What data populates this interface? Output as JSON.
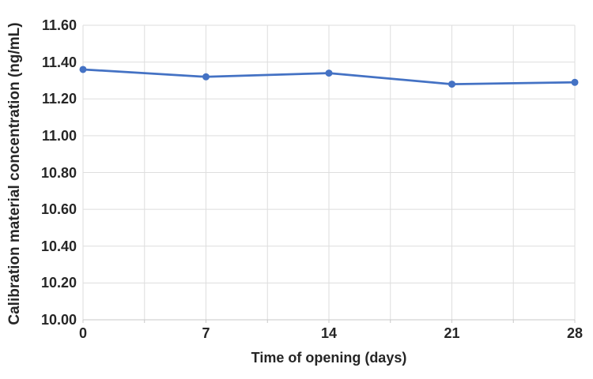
{
  "chart_data": {
    "type": "line",
    "title": "",
    "xlabel": "Time of opening (days)",
    "ylabel": "Calibration material concentration (ng/mL)",
    "x": [
      0,
      7,
      14,
      21,
      28
    ],
    "values": [
      11.36,
      11.32,
      11.34,
      11.28,
      11.29
    ],
    "xlim": [
      0,
      28
    ],
    "ylim": [
      10.0,
      11.6
    ],
    "xticks": {
      "values": [
        0,
        7,
        14,
        21,
        28
      ],
      "labels": [
        "0",
        "7",
        "14",
        "21",
        "28"
      ]
    },
    "yticks": {
      "values": [
        10.0,
        10.2,
        10.4,
        10.6,
        10.8,
        11.0,
        11.2,
        11.4,
        11.6
      ],
      "labels": [
        "10.00",
        "10.20",
        "10.40",
        "10.60",
        "10.80",
        "11.00",
        "11.20",
        "11.40",
        "11.60"
      ]
    },
    "x_minor_gridline_step": 3.5,
    "grid": true,
    "legend": "none",
    "marker_style": "circle",
    "colors": {
      "line": "#4472C4",
      "marker": "#4472C4",
      "gridline": "#DEDEDE",
      "axis_line": "#C9C9C9",
      "text": "#262626"
    }
  }
}
